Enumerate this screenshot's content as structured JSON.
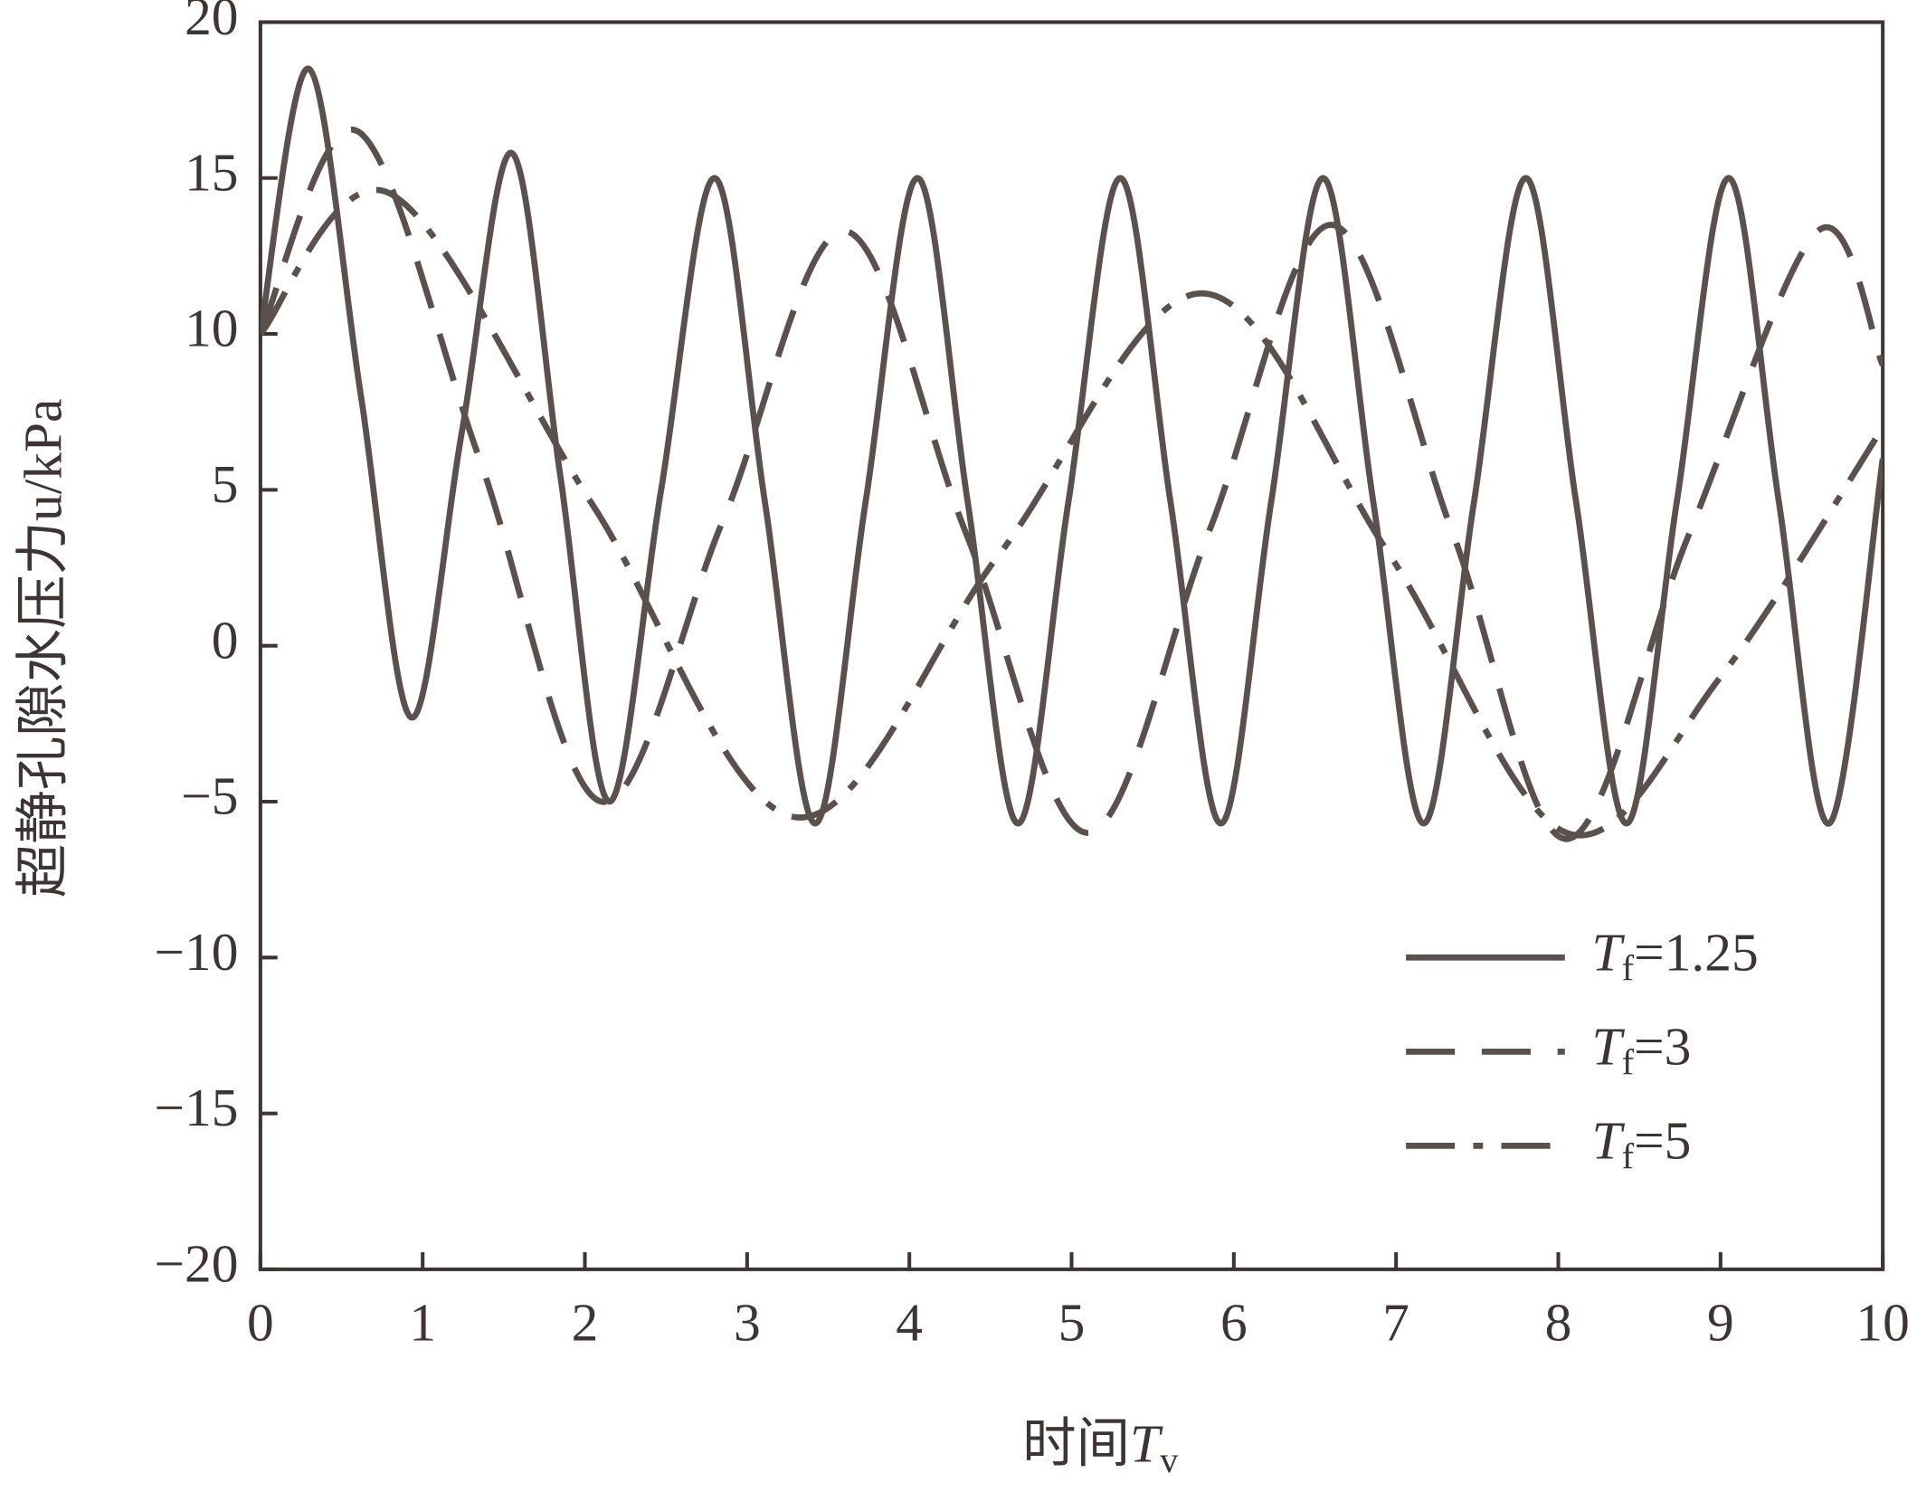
{
  "chart_data": {
    "type": "line",
    "x_label": "时间Tv",
    "y_label": "超静孔隙水压力u/kPa",
    "xlim": [
      0,
      10
    ],
    "ylim": [
      -20,
      20
    ],
    "xticks": [
      0,
      1,
      2,
      3,
      4,
      5,
      6,
      7,
      8,
      9,
      10
    ],
    "yticks": [
      {
        "value": -20,
        "label": "−20"
      },
      {
        "value": -15,
        "label": "−15"
      },
      {
        "value": -10,
        "label": "−10"
      },
      {
        "value": -5,
        "label": "−5"
      },
      0,
      5,
      10,
      15,
      20
    ],
    "legend": "lower right",
    "series": [
      {
        "name": "Tf=1.25",
        "color": "#5a504d",
        "style": "solid",
        "x": [
          0,
          0.3,
          0.62,
          0.93,
          1.24,
          1.55,
          1.85,
          2.15,
          2.47,
          2.8,
          3.11,
          3.42,
          3.73,
          4.05,
          4.36,
          4.67,
          4.98,
          5.3,
          5.61,
          5.92,
          6.23,
          6.55,
          6.86,
          7.17,
          7.48,
          7.8,
          8.11,
          8.42,
          8.73,
          9.05,
          9.36,
          9.67,
          10
        ],
        "values": [
          10,
          18.5,
          8,
          -2.3,
          6.8,
          15.8,
          5.4,
          -5,
          5,
          15,
          4.6,
          -5.7,
          4.6,
          15,
          4.6,
          -5.7,
          4.6,
          15,
          4.6,
          -5.7,
          4.6,
          15,
          4.6,
          -5.7,
          4.6,
          15,
          4.6,
          -5.7,
          4.6,
          15,
          4.6,
          -5.7,
          6
        ]
      },
      {
        "name": "Tf=3",
        "color": "#5a504d",
        "style": "dashed",
        "x": [
          0,
          0.6,
          1.35,
          2.1,
          2.85,
          3.6,
          4.35,
          5.1,
          5.85,
          6.6,
          7.35,
          8.05,
          8.8,
          9.6,
          10
        ],
        "values": [
          10,
          16.5,
          6,
          -5,
          4,
          13.3,
          3.6,
          -6,
          3.7,
          13.5,
          3.6,
          -6.2,
          3.5,
          13.3,
          9
        ]
      },
      {
        "name": "Tf=5",
        "color": "#5a504d",
        "style": "dashdot",
        "x": [
          0,
          0.8,
          2.05,
          3.3,
          4.55,
          5.8,
          6.95,
          8.05,
          9.0,
          10
        ],
        "values": [
          10,
          14.5,
          4.5,
          -5.5,
          2.9,
          11.3,
          3,
          -6,
          -1,
          7
        ]
      }
    ]
  }
}
